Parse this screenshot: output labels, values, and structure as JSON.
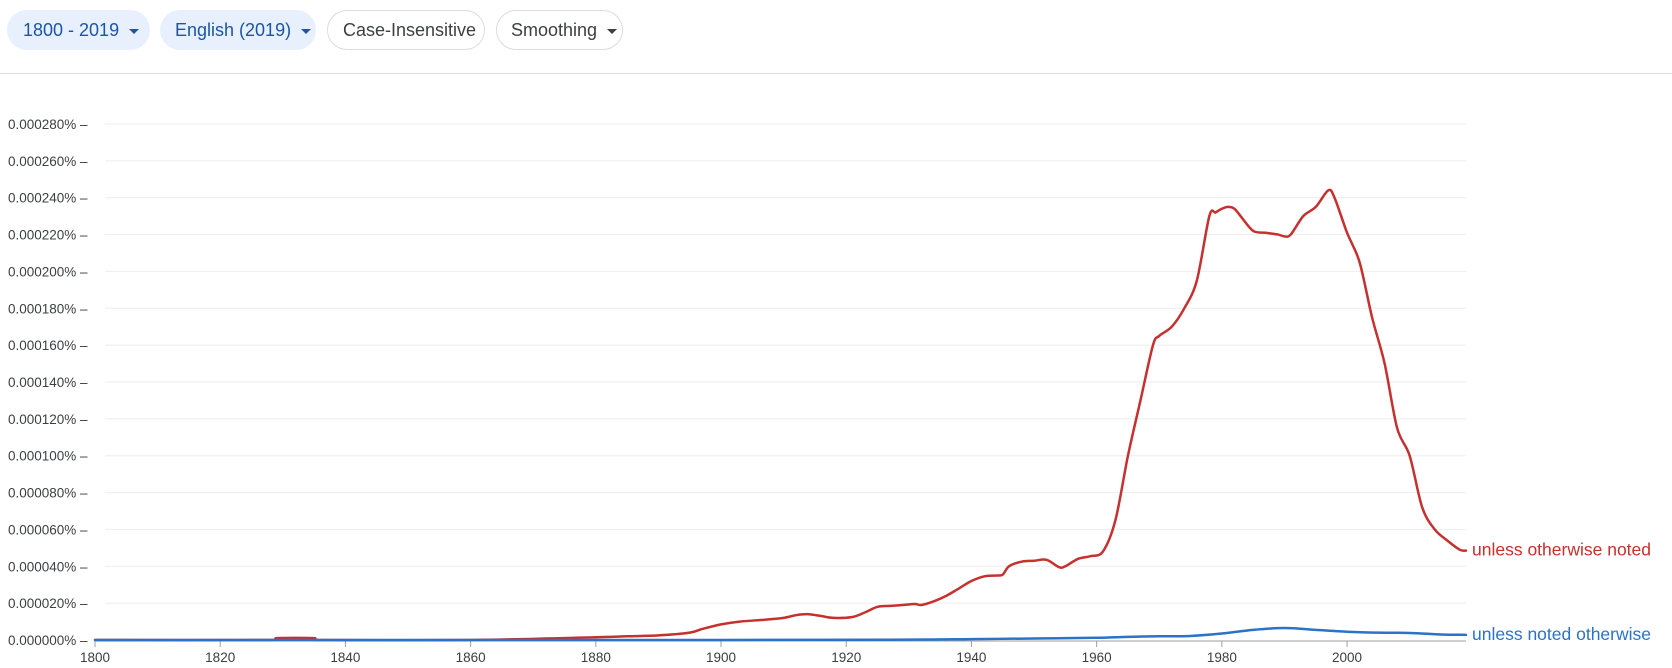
{
  "toolbar": {
    "year_range_label": "1800 - 2019",
    "corpus_label": "English (2019)",
    "case_label": "Case-Insensitive",
    "smoothing_label": "Smoothing"
  },
  "colors": {
    "chip_fill": "#e8f0fe",
    "chip_text": "#1a56a6",
    "series_red": "#c5312e",
    "series_blue": "#2a73c7",
    "grid": "#eeeeee",
    "axis": "#9e9e9e"
  },
  "chart_data": {
    "type": "line",
    "x_range": [
      1800,
      2019
    ],
    "ylim": [
      0,
      0.00028
    ],
    "y_ticks": [
      "0.000000%",
      "0.000020%",
      "0.000040%",
      "0.000060%",
      "0.000080%",
      "0.000100%",
      "0.000120%",
      "0.000140%",
      "0.000160%",
      "0.000180%",
      "0.000200%",
      "0.000220%",
      "0.000240%",
      "0.000260%",
      "0.000280%"
    ],
    "x_ticks": [
      "1800",
      "1820",
      "1840",
      "1860",
      "1880",
      "1900",
      "1920",
      "1940",
      "1960",
      "1980",
      "2000"
    ],
    "x_tick_values": [
      1800,
      1820,
      1840,
      1860,
      1880,
      1900,
      1920,
      1940,
      1960,
      1980,
      2000
    ],
    "grid": true,
    "series": [
      {
        "name": "unless otherwise noted",
        "color": "#c5312e",
        "x": [
          1800,
          1828,
          1829,
          1835,
          1836,
          1860,
          1880,
          1885,
          1890,
          1895,
          1897,
          1900,
          1903,
          1907,
          1910,
          1912,
          1914,
          1916,
          1918,
          1921,
          1923,
          1925,
          1927,
          1929,
          1931,
          1932,
          1934,
          1936,
          1938,
          1940,
          1942,
          1944,
          1945,
          1946,
          1948,
          1950,
          1952,
          1954,
          1955,
          1957,
          1959,
          1961,
          1963,
          1965,
          1967,
          1969,
          1970,
          1972,
          1974,
          1976,
          1978,
          1979,
          1980,
          1981,
          1982,
          1983,
          1985,
          1987,
          1989,
          1990,
          1991,
          1993,
          1995,
          1997,
          1998,
          2000,
          2002,
          2004,
          2006,
          2008,
          2010,
          2012,
          2014,
          2016,
          2018,
          2019
        ],
        "values": [
          0,
          0,
          1e-06,
          1e-06,
          0,
          0,
          1.5e-06,
          2e-06,
          2.5e-06,
          4e-06,
          6e-06,
          8.5e-06,
          1e-05,
          1.1e-05,
          1.2e-05,
          1.35e-05,
          1.4e-05,
          1.3e-05,
          1.2e-05,
          1.25e-05,
          1.5e-05,
          1.8e-05,
          1.85e-05,
          1.9e-05,
          1.95e-05,
          1.9e-05,
          2.1e-05,
          2.4e-05,
          2.8e-05,
          3.2e-05,
          3.45e-05,
          3.5e-05,
          3.55e-05,
          4e-05,
          4.25e-05,
          4.3e-05,
          4.35e-05,
          3.95e-05,
          4e-05,
          4.4e-05,
          4.55e-05,
          4.8e-05,
          6.5e-05,
          0.0001,
          0.00013,
          0.00016,
          0.000165,
          0.00017,
          0.00018,
          0.000195,
          0.00023,
          0.000232,
          0.000234,
          0.000235,
          0.000234,
          0.00023,
          0.000222,
          0.000221,
          0.00022,
          0.000219,
          0.00022,
          0.00023,
          0.000235,
          0.000244,
          0.00024,
          0.000221,
          0.000205,
          0.000175,
          0.00015,
          0.000115,
          0.0001,
          7.2e-05,
          6e-05,
          5.4e-05,
          4.9e-05,
          4.85e-05
        ]
      },
      {
        "name": "unless noted otherwise",
        "color": "#2a73c7",
        "x": [
          1800,
          1900,
          1930,
          1940,
          1950,
          1960,
          1965,
          1970,
          1975,
          1980,
          1985,
          1990,
          1995,
          2000,
          2005,
          2010,
          2015,
          2019
        ],
        "values": [
          0,
          0,
          2e-07,
          5e-07,
          8e-07,
          1.2e-06,
          1.7e-06,
          2e-06,
          2.2e-06,
          3.5e-06,
          5.5e-06,
          6.5e-06,
          5.5e-06,
          4.5e-06,
          4e-06,
          3.8e-06,
          3e-06,
          2.8e-06
        ]
      }
    ]
  }
}
